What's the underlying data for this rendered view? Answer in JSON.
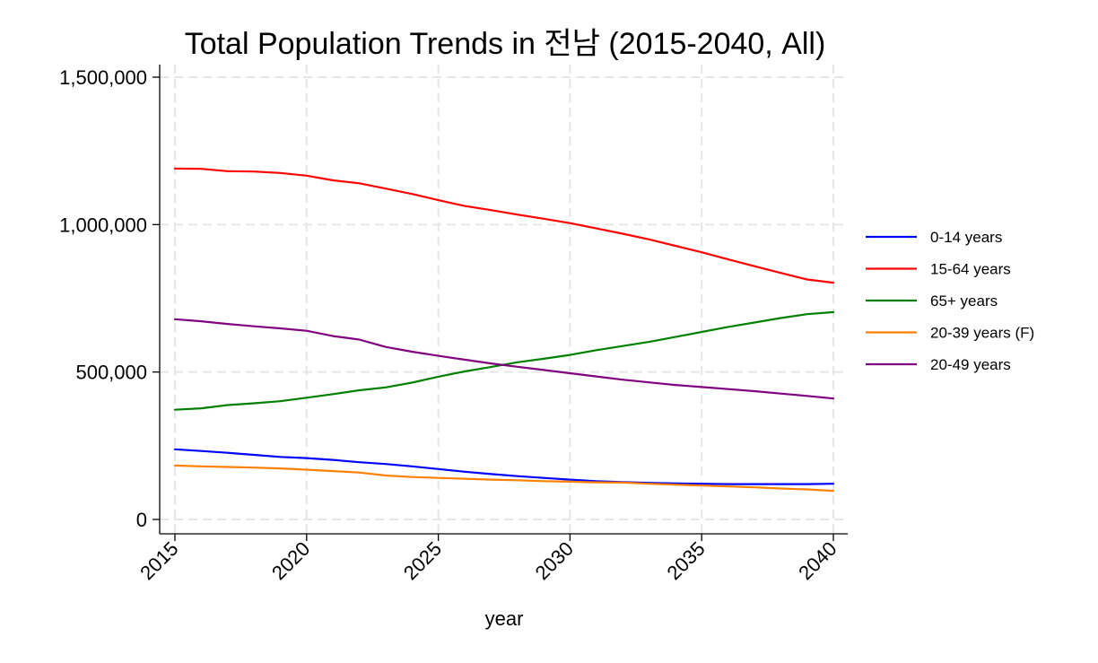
{
  "chart_data": {
    "type": "line",
    "title": "Total Population Trends in 전남 (2015-2040, All)",
    "xlabel": "year",
    "ylabel": "",
    "x": [
      2015,
      2016,
      2017,
      2018,
      2019,
      2020,
      2021,
      2022,
      2023,
      2024,
      2025,
      2026,
      2027,
      2028,
      2029,
      2030,
      2031,
      2032,
      2033,
      2034,
      2035,
      2036,
      2037,
      2038,
      2039,
      2040
    ],
    "xlim": [
      2015,
      2040
    ],
    "ylim": [
      0,
      1500000
    ],
    "xticks": [
      2015,
      2020,
      2025,
      2030,
      2035,
      2040
    ],
    "xtick_labels": [
      "2015",
      "2020",
      "2025",
      "2030",
      "2035",
      "2040"
    ],
    "yticks": [
      0,
      500000,
      1000000,
      1500000
    ],
    "ytick_labels": [
      "0",
      "500,000",
      "1,000,000",
      "1,500,000"
    ],
    "grid": true,
    "legend_position": "right",
    "series": [
      {
        "name": "0-14 years",
        "color": "#0000ff",
        "values": [
          238000,
          232000,
          226000,
          219000,
          212000,
          208000,
          202000,
          194000,
          188000,
          180000,
          171000,
          162000,
          154000,
          147000,
          141000,
          135000,
          130000,
          127000,
          124000,
          122000,
          121000,
          120000,
          120000,
          120000,
          120000,
          121000
        ]
      },
      {
        "name": "15-64 years",
        "color": "#ff0000",
        "values": [
          1190000,
          1189000,
          1181000,
          1180000,
          1175000,
          1166000,
          1150000,
          1140000,
          1122000,
          1104000,
          1083000,
          1063000,
          1049000,
          1034000,
          1020000,
          1005000,
          987000,
          969000,
          950000,
          928000,
          906000,
          882000,
          859000,
          836000,
          814000,
          803000
        ]
      },
      {
        "name": "65+ years",
        "color": "#008000",
        "values": [
          372000,
          377000,
          388000,
          394000,
          401000,
          413000,
          425000,
          438000,
          448000,
          464000,
          484000,
          502000,
          517000,
          533000,
          545000,
          558000,
          574000,
          588000,
          602000,
          619000,
          636000,
          653000,
          668000,
          683000,
          696000,
          703000
        ]
      },
      {
        "name": "20-39 years (F)",
        "color": "#ff8000",
        "values": [
          183000,
          180000,
          178000,
          176000,
          173000,
          169000,
          164000,
          159000,
          149000,
          144000,
          141000,
          138000,
          135000,
          133000,
          130000,
          128000,
          126000,
          125000,
          121000,
          118000,
          115000,
          112000,
          109000,
          105000,
          102000,
          97000
        ]
      },
      {
        "name": "20-49 years",
        "color": "#800080",
        "values": [
          679000,
          672000,
          663000,
          655000,
          648000,
          640000,
          622000,
          610000,
          585000,
          569000,
          555000,
          542000,
          529000,
          518000,
          507000,
          496000,
          485000,
          474000,
          465000,
          456000,
          449000,
          442000,
          435000,
          427000,
          419000,
          410000
        ]
      }
    ]
  }
}
